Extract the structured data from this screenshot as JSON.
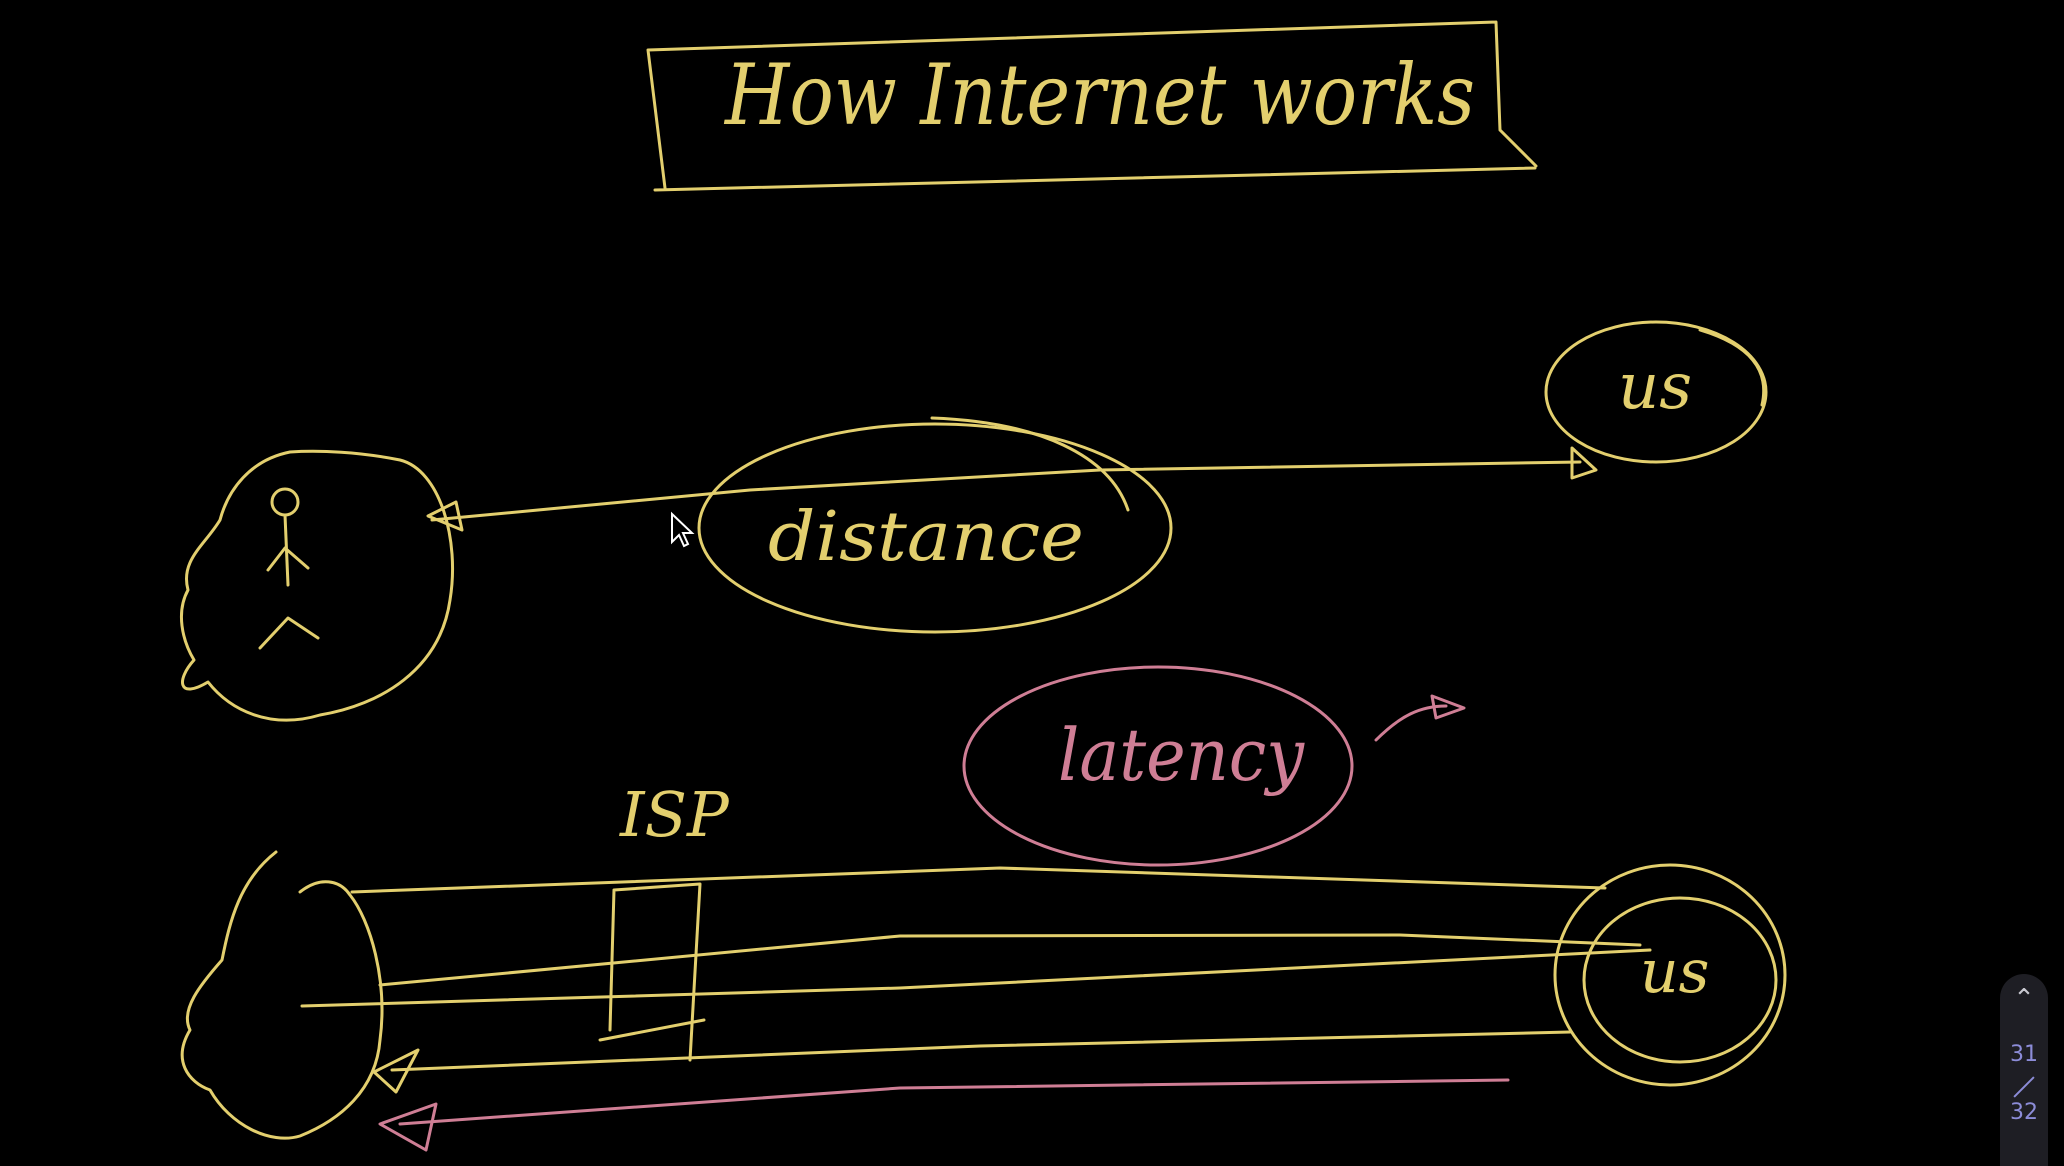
{
  "title": "How Internet works",
  "labels": {
    "distance": "distance",
    "us_top": "us",
    "latency": "latency",
    "isp": "ISP",
    "us_bottom": "us"
  },
  "pager": {
    "current": "31",
    "total": "32"
  },
  "colors": {
    "background": "#000000",
    "ink_yellow": "#e3cf6e",
    "ink_pink": "#cf7e95",
    "pager_text": "#8c8cd8"
  }
}
